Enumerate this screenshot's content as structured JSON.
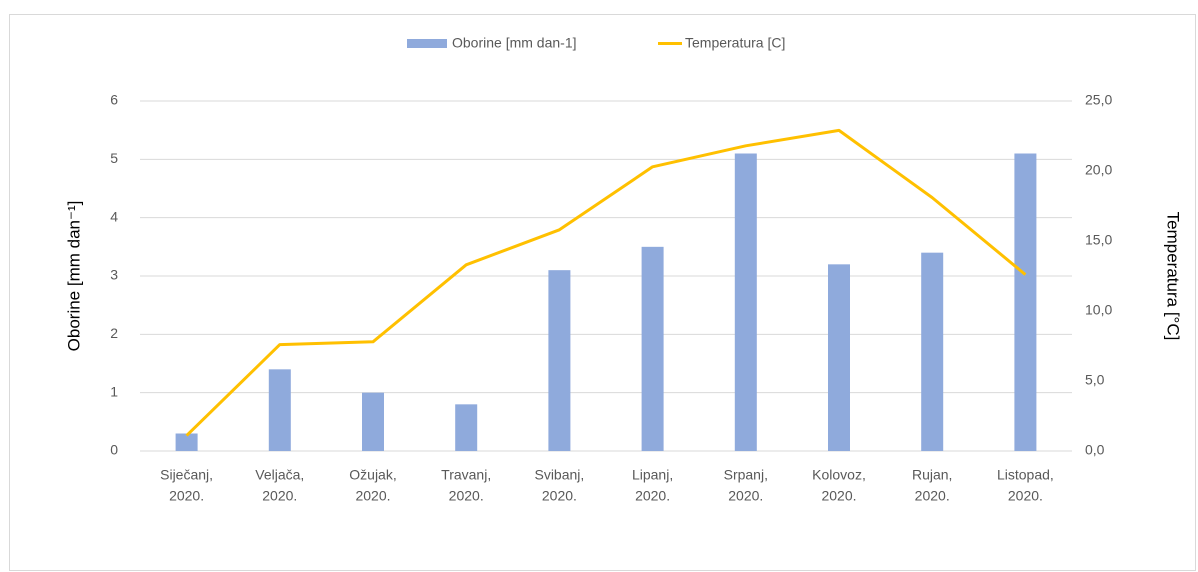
{
  "chart_data": {
    "type": "bar-line",
    "categories": [
      [
        "Siječanj,",
        "2020."
      ],
      [
        "Veljača,",
        "2020."
      ],
      [
        "Ožujak,",
        "2020."
      ],
      [
        "Travanj,",
        "2020."
      ],
      [
        "Svibanj,",
        "2020."
      ],
      [
        "Lipanj,",
        "2020."
      ],
      [
        "Srpanj,",
        "2020."
      ],
      [
        "Kolovoz,",
        "2020."
      ],
      [
        "Rujan,",
        "2020."
      ],
      [
        "Listopad,",
        "2020."
      ]
    ],
    "series": [
      {
        "name": "Oborine [mm dan-1]",
        "type": "bar",
        "color": "#8faadc",
        "values": [
          0.3,
          1.4,
          1.0,
          0.8,
          3.1,
          3.5,
          5.1,
          3.2,
          3.4,
          5.1
        ]
      },
      {
        "name": "Temperatura [C]",
        "type": "line",
        "axis": "y2",
        "color": "#ffc000",
        "values": [
          1.1,
          7.6,
          7.8,
          13.3,
          15.8,
          20.3,
          21.8,
          22.9,
          18.1,
          12.6
        ]
      }
    ],
    "ylabel": "Oborine [mm dan⁻¹]",
    "y2label": "Temperatura [°C]",
    "ylim": [
      0,
      6
    ],
    "yticks": [
      0,
      1,
      2,
      3,
      4,
      5,
      6
    ],
    "y2lim": [
      0,
      25
    ],
    "y2ticks": [
      {
        "value": 0,
        "label": "0,0"
      },
      {
        "value": 5,
        "label": "5,0"
      },
      {
        "value": 10,
        "label": "10,0"
      },
      {
        "value": 15,
        "label": "15,0"
      },
      {
        "value": 20,
        "label": "20,0"
      },
      {
        "value": 25,
        "label": "25,0"
      }
    ],
    "grid": true,
    "legend": "top"
  }
}
